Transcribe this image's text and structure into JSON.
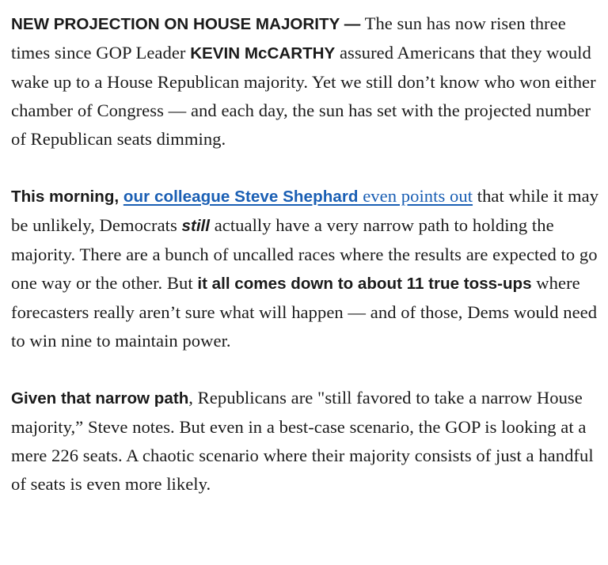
{
  "article": {
    "p1": {
      "lead": "NEW PROJECTION ON HOUSE MAJORITY —",
      "t1": " The sun has now risen three times since GOP Leader ",
      "name": "KEVIN McCARTHY",
      "t2": " assured Americans that they would wake up to a House Republican majority. Yet we still don’t know who won either chamber of Congress — and each day, the sun has set with the projected number of Republican seats dimming."
    },
    "p2": {
      "lead": "This morning,",
      "t1": " ",
      "link1": "our colleague Steve Shephard",
      "link2": " even points out",
      "t2": " that while it may be unlikely, Democrats ",
      "emph": "still",
      "t3": " actually have a very narrow path to holding the majority. There are a bunch of uncalled races where the results are expected to go one way or the other. But ",
      "bold": "it all comes down to about 11 true toss-ups",
      "t4": " where forecasters really aren’t sure what will happen — and of those, Dems would need to win nine to maintain power."
    },
    "p3": {
      "lead": "Given that narrow path",
      "t1": ", Republicans are \"still favored to take a narrow House majority,” Steve notes. But even in a best-case scenario, the GOP is looking at a mere 226 seats. A chaotic scenario where their majority consists of just a handful of seats is even more likely."
    }
  },
  "colors": {
    "text": "#1b1b1b",
    "link": "#1a5fb4",
    "background": "#ffffff"
  }
}
